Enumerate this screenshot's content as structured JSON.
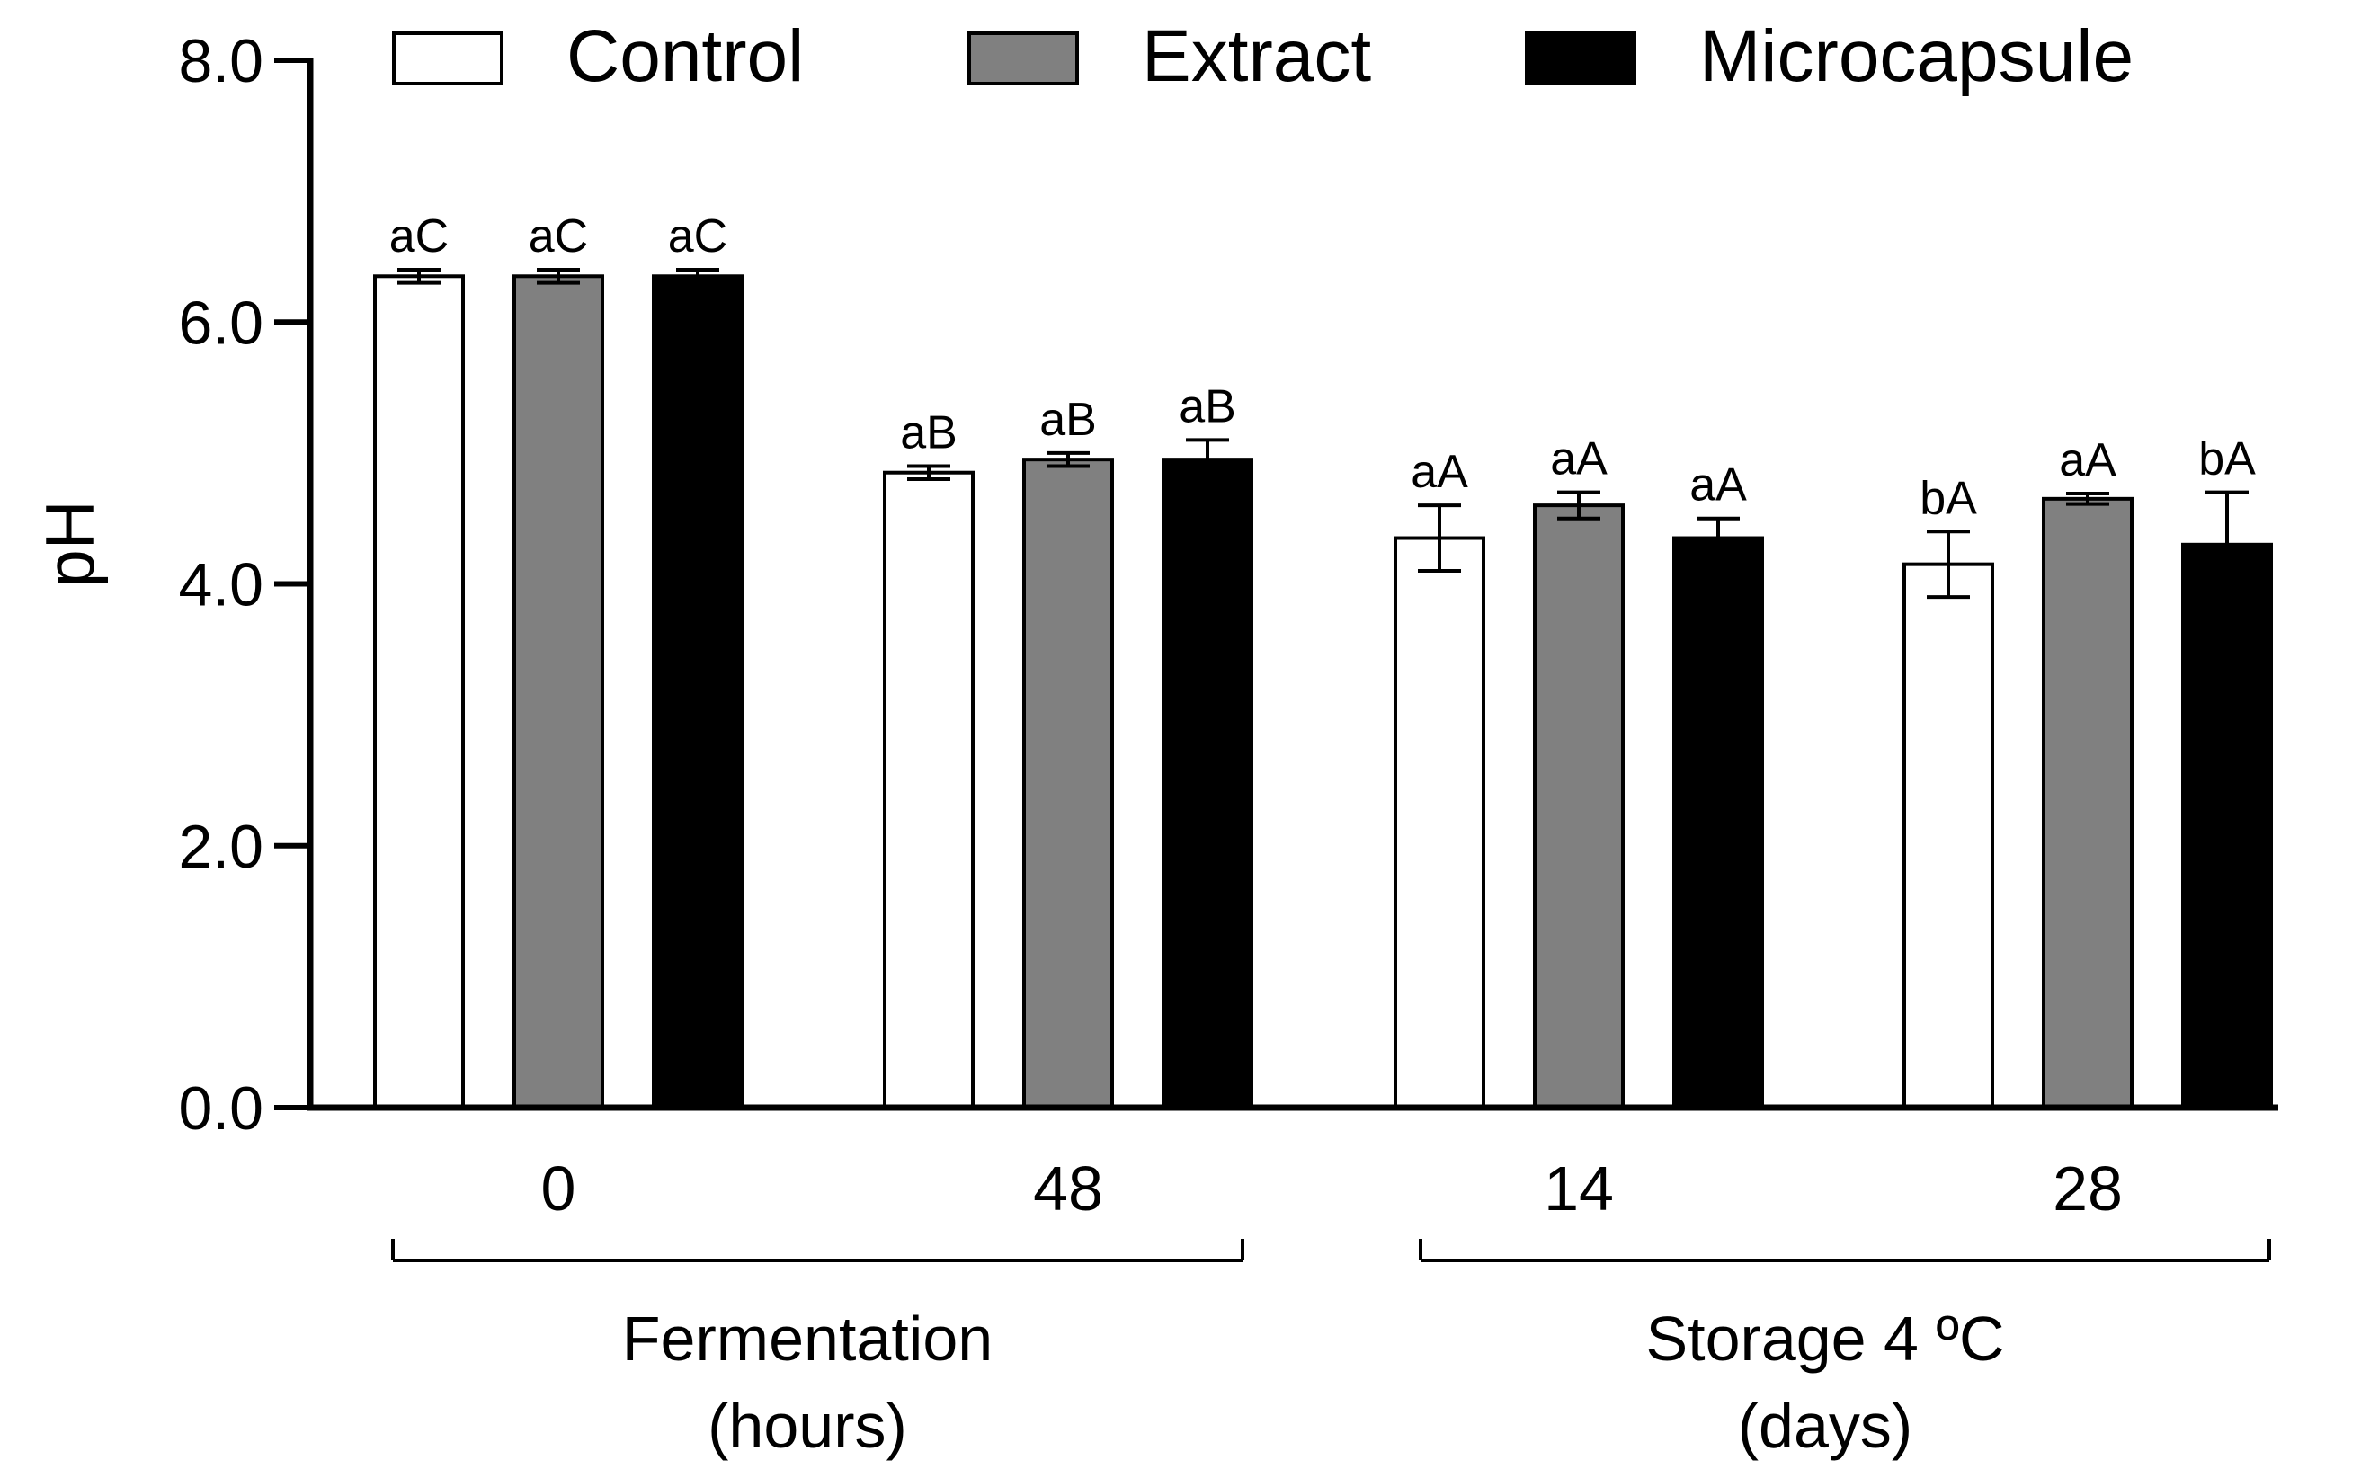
{
  "chart_data": {
    "type": "bar",
    "title": "",
    "ylabel": "pH",
    "xlabel": "",
    "ylim": [
      0,
      8
    ],
    "yticks": [
      "0.0",
      "2.0",
      "4.0",
      "6.0",
      "8.0"
    ],
    "yticks_values": [
      0,
      2,
      4,
      6,
      8
    ],
    "categories": [
      "0",
      "48",
      "14",
      "28"
    ],
    "groups": [
      {
        "label_line1": "Fermentation",
        "label_line2": "(hours)",
        "categories": [
          "0",
          "48"
        ]
      },
      {
        "label_line1": "Storage 4 ºC",
        "label_line2": "(days)",
        "categories": [
          "14",
          "28"
        ]
      }
    ],
    "legend": {
      "position": "top"
    },
    "series": [
      {
        "name": "Control",
        "color": "#ffffff",
        "values": [
          6.35,
          4.85,
          4.35,
          4.15
        ],
        "errors": [
          0.05,
          0.05,
          0.25,
          0.25
        ],
        "labels": [
          "aC",
          "aB",
          "aA",
          "bA"
        ]
      },
      {
        "name": "Extract",
        "color": "#808080",
        "values": [
          6.35,
          4.95,
          4.6,
          4.65
        ],
        "errors": [
          0.05,
          0.05,
          0.1,
          0.04
        ],
        "labels": [
          "aC",
          "aB",
          "aA",
          "aA"
        ]
      },
      {
        "name": "Microcapsule",
        "color": "#000000",
        "values": [
          6.35,
          4.95,
          4.35,
          4.3
        ],
        "errors": [
          0.05,
          0.15,
          0.15,
          0.4
        ],
        "labels": [
          "aC",
          "aB",
          "aA",
          "bA"
        ]
      }
    ]
  }
}
